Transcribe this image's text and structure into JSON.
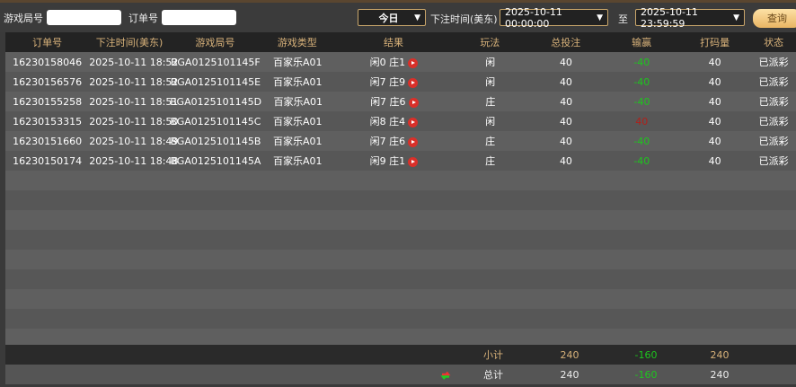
{
  "filter": {
    "round_label": "游戏局号",
    "round_value": "",
    "order_label": "订单号",
    "order_value": "",
    "period": "今日",
    "time_label": "下注时间(美东)",
    "start": "2025-10-11 00:00:00",
    "to": "至",
    "end": "2025-10-11 23:59:59",
    "query": "查询"
  },
  "columns": [
    "订单号",
    "下注时间(美东)",
    "游戏局号",
    "游戏类型",
    "结果",
    "玩法",
    "总投注",
    "输赢",
    "打码量",
    "状态"
  ],
  "rows": [
    {
      "order": "16230158046",
      "time": "2025-10-11 18:52",
      "round": "BGA0125101145F",
      "game": "百家乐A01",
      "result": "闲0 庄1",
      "play": "闲",
      "bet": "40",
      "win": "-40",
      "valid": "40",
      "status": "已派彩"
    },
    {
      "order": "16230156576",
      "time": "2025-10-11 18:52",
      "round": "BGA0125101145E",
      "game": "百家乐A01",
      "result": "闲7 庄9",
      "play": "闲",
      "bet": "40",
      "win": "-40",
      "valid": "40",
      "status": "已派彩"
    },
    {
      "order": "16230155258",
      "time": "2025-10-11 18:51",
      "round": "BGA0125101145D",
      "game": "百家乐A01",
      "result": "闲7 庄6",
      "play": "庄",
      "bet": "40",
      "win": "-40",
      "valid": "40",
      "status": "已派彩"
    },
    {
      "order": "16230153315",
      "time": "2025-10-11 18:50",
      "round": "BGA0125101145C",
      "game": "百家乐A01",
      "result": "闲8 庄4",
      "play": "闲",
      "bet": "40",
      "win": "40",
      "valid": "40",
      "status": "已派彩"
    },
    {
      "order": "16230151660",
      "time": "2025-10-11 18:49",
      "round": "BGA0125101145B",
      "game": "百家乐A01",
      "result": "闲7 庄6",
      "play": "庄",
      "bet": "40",
      "win": "-40",
      "valid": "40",
      "status": "已派彩"
    },
    {
      "order": "16230150174",
      "time": "2025-10-11 18:48",
      "round": "BGA0125101145A",
      "game": "百家乐A01",
      "result": "闲9 庄1",
      "play": "庄",
      "bet": "40",
      "win": "-40",
      "valid": "40",
      "status": "已派彩"
    }
  ],
  "subtotal": {
    "label": "小计",
    "bet": "240",
    "win": "-160",
    "valid": "240"
  },
  "total": {
    "label": "总计",
    "bet": "240",
    "win": "-160",
    "valid": "240"
  },
  "colors": {
    "accent": "#d8b27a",
    "loss": "#1ec51e",
    "win": "#b0201a"
  }
}
